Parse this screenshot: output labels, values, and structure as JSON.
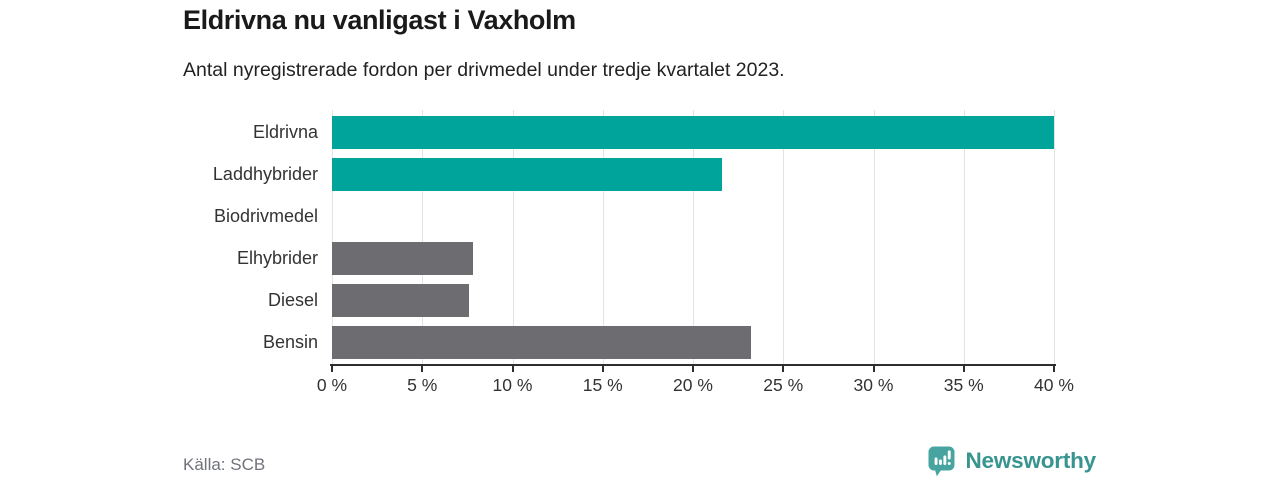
{
  "header": {
    "title": "Eldrivna nu vanligast i Vaxholm",
    "subtitle": "Antal nyregistrerade fordon per drivmedel under tredje kvartalet 2023."
  },
  "chart_data": {
    "type": "bar",
    "orientation": "horizontal",
    "title": "Eldrivna nu vanligast i Vaxholm",
    "subtitle": "Antal nyregistrerade fordon per drivmedel under tredje kvartalet 2023.",
    "categories": [
      "Eldrivna",
      "Laddhybrider",
      "Biodrivmedel",
      "Elhybrider",
      "Diesel",
      "Bensin"
    ],
    "values": [
      40,
      21.6,
      0,
      7.8,
      7.6,
      23.2
    ],
    "unit": "%",
    "xlim": [
      0,
      40
    ],
    "x_ticks": [
      0,
      5,
      10,
      15,
      20,
      25,
      30,
      35,
      40
    ],
    "x_tick_labels": [
      "0 %",
      "5 %",
      "10 %",
      "15 %",
      "20 %",
      "25 %",
      "30 %",
      "35 %",
      "40 %"
    ],
    "grid": true,
    "legend": "none",
    "bar_colors": [
      "#00a49b",
      "#00a49b",
      "#6c6c71",
      "#6c6c71",
      "#6c6c71",
      "#6c6c71"
    ],
    "highlight_color": "#00a49b",
    "base_color": "#6c6c71",
    "gridline_color": "#e3e3e3",
    "axis_color": "#2e2e2e"
  },
  "footer": {
    "source": "Källa: SCB",
    "brand": "Newsworthy",
    "brand_color": "#38948f",
    "logo_color": "#47a4a0"
  },
  "icons": {
    "logo": "newsworthy-chart-bubble-icon"
  }
}
